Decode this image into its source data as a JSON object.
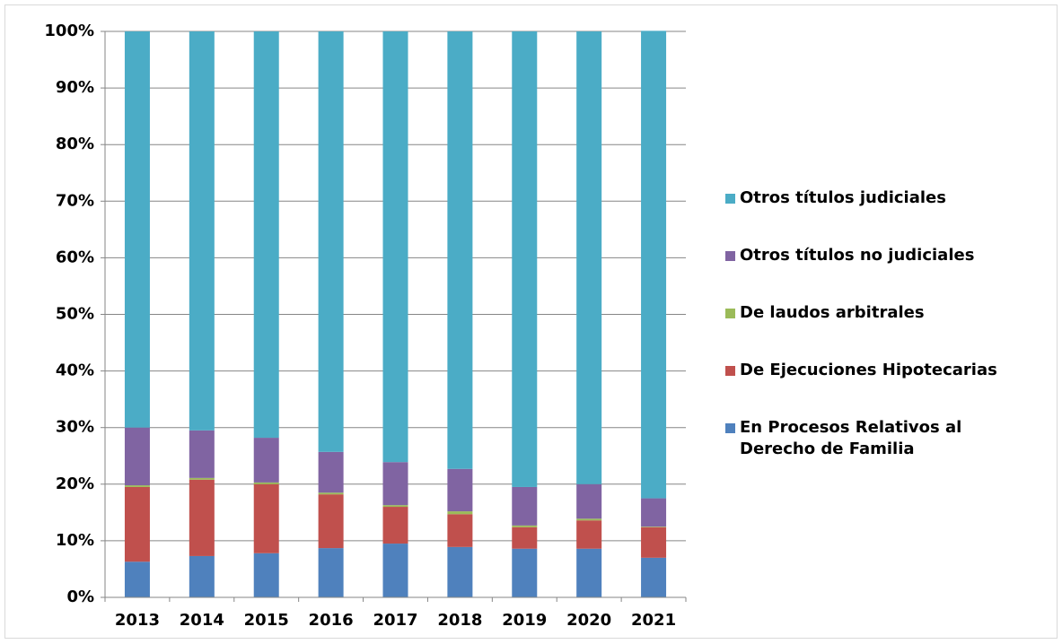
{
  "chart_data": {
    "type": "stacked_bar",
    "categories": [
      "2013",
      "2014",
      "2015",
      "2016",
      "2017",
      "2018",
      "2019",
      "2020",
      "2021"
    ],
    "series": [
      {
        "name": "En Procesos Relativos al Derecho de Familia",
        "color": "#4f81bd",
        "values": [
          6.3,
          7.3,
          7.8,
          8.7,
          9.5,
          8.9,
          8.6,
          8.6,
          7.0
        ]
      },
      {
        "name": "De Ejecuciones Hipotecarias",
        "color": "#c0504d",
        "values": [
          13.2,
          13.5,
          12.2,
          9.5,
          6.5,
          5.8,
          3.8,
          5.0,
          5.4
        ]
      },
      {
        "name": "De laudos arbitrales",
        "color": "#9bbb59",
        "values": [
          0.3,
          0.3,
          0.3,
          0.3,
          0.3,
          0.5,
          0.3,
          0.3,
          0.1
        ]
      },
      {
        "name": "Otros títulos no judiciales",
        "color": "#8064a2",
        "values": [
          10.2,
          8.4,
          7.9,
          7.2,
          7.6,
          7.5,
          6.8,
          6.1,
          5.0
        ]
      },
      {
        "name": "Otros títulos judiciales",
        "color": "#4bacc6",
        "values": [
          70.0,
          70.5,
          71.8,
          74.3,
          76.1,
          77.3,
          80.5,
          80.0,
          82.6
        ]
      }
    ],
    "ylim": [
      0,
      100
    ],
    "yticks": [
      {
        "value": 0,
        "label": "0%"
      },
      {
        "value": 10,
        "label": "10%"
      },
      {
        "value": 20,
        "label": "20%"
      },
      {
        "value": 30,
        "label": "30%"
      },
      {
        "value": 40,
        "label": "40%"
      },
      {
        "value": 50,
        "label": "50%"
      },
      {
        "value": 60,
        "label": "60%"
      },
      {
        "value": 70,
        "label": "70%"
      },
      {
        "value": 80,
        "label": "80%"
      },
      {
        "value": 90,
        "label": "90%"
      },
      {
        "value": 100,
        "label": "100%"
      }
    ],
    "grid": true
  }
}
